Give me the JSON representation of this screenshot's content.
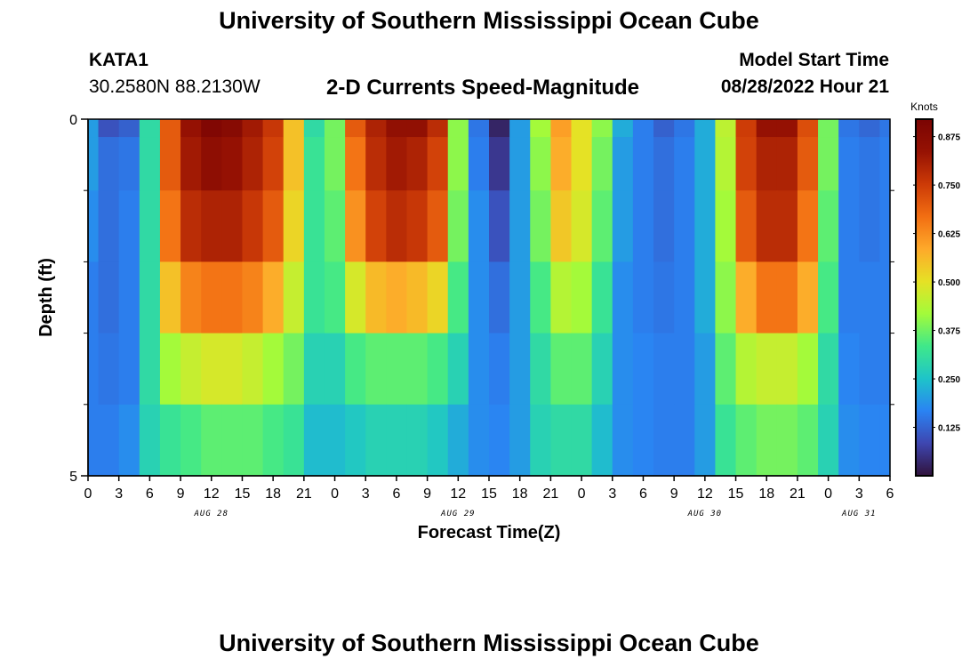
{
  "header": {
    "title": "University of Southern Mississippi Ocean Cube",
    "station": "KATA1",
    "coordinates": "30.2580N  88.2130W",
    "subtitle": "2-D Currents Speed-Magnitude",
    "model_start_label": "Model Start Time",
    "model_start_value": "08/28/2022 Hour 21"
  },
  "footer": {
    "title": "University of Southern Mississippi Ocean Cube"
  },
  "colors": {
    "colormap": [
      "#30123b",
      "#3e46b0",
      "#2a83f3",
      "#1ec4c9",
      "#3fe88a",
      "#a3fb3a",
      "#e6e125",
      "#fea92a",
      "#f26e12",
      "#cc3a07",
      "#961203",
      "#7a0403"
    ],
    "axis": "#000000"
  },
  "chart_data": {
    "type": "heatmap",
    "title": "2-D Currents Speed-Magnitude",
    "xlabel": "Forecast Time(Z)",
    "ylabel": "Depth (ft)",
    "colorbar_label": "Knots",
    "colorbar_ticks": [
      "0.875",
      "0.750",
      "0.625",
      "0.500",
      "0.375",
      "0.250",
      "0.125"
    ],
    "colorbar_range": [
      0,
      0.92
    ],
    "ylim": [
      0,
      5
    ],
    "y_tick_labels": [
      "0",
      "5"
    ],
    "x_tick_labels": [
      "0",
      "3",
      "6",
      "9",
      "12",
      "15",
      "18",
      "21",
      "0",
      "3",
      "6",
      "9",
      "12",
      "15",
      "18",
      "21",
      "0",
      "3",
      "6",
      "9",
      "12",
      "15",
      "18",
      "21",
      "0",
      "3",
      "6"
    ],
    "x_range_hours": [
      0,
      78
    ],
    "date_labels": [
      {
        "label": "AUG 28",
        "hour": 12
      },
      {
        "label": "AUG 29",
        "hour": 36
      },
      {
        "label": "AUG 30",
        "hour": 60
      },
      {
        "label": "AUG 31",
        "hour": 75
      }
    ],
    "depth_layers": [
      0,
      0.5,
      1.5,
      2.5,
      3.5,
      4.5
    ],
    "time_hours": [
      0,
      2,
      4,
      6,
      8,
      10,
      12,
      14,
      16,
      18,
      20,
      22,
      24,
      26,
      28,
      30,
      32,
      34,
      36,
      38,
      40,
      42,
      44,
      46,
      48,
      50,
      52,
      54,
      56,
      58,
      60,
      62,
      64,
      66,
      68,
      70,
      72,
      74,
      76,
      78
    ],
    "speed_knots": [
      [
        0.2,
        0.1,
        0.12,
        0.3,
        0.7,
        0.84,
        0.9,
        0.88,
        0.82,
        0.76,
        0.55,
        0.3,
        0.38,
        0.7,
        0.8,
        0.85,
        0.85,
        0.78,
        0.4,
        0.15,
        0.03,
        0.2,
        0.42,
        0.6,
        0.5,
        0.4,
        0.22,
        0.16,
        0.12,
        0.15,
        0.22,
        0.45,
        0.75,
        0.84,
        0.84,
        0.72,
        0.38,
        0.15,
        0.13,
        0.15
      ],
      [
        0.2,
        0.14,
        0.15,
        0.3,
        0.7,
        0.82,
        0.86,
        0.84,
        0.8,
        0.74,
        0.55,
        0.32,
        0.38,
        0.66,
        0.78,
        0.82,
        0.8,
        0.74,
        0.4,
        0.16,
        0.06,
        0.2,
        0.4,
        0.58,
        0.5,
        0.38,
        0.2,
        0.16,
        0.14,
        0.16,
        0.22,
        0.44,
        0.74,
        0.8,
        0.8,
        0.7,
        0.38,
        0.16,
        0.15,
        0.16
      ],
      [
        0.18,
        0.14,
        0.16,
        0.3,
        0.66,
        0.78,
        0.8,
        0.8,
        0.76,
        0.7,
        0.52,
        0.32,
        0.36,
        0.62,
        0.74,
        0.78,
        0.76,
        0.7,
        0.38,
        0.18,
        0.1,
        0.2,
        0.38,
        0.54,
        0.48,
        0.36,
        0.2,
        0.16,
        0.14,
        0.16,
        0.22,
        0.42,
        0.7,
        0.78,
        0.78,
        0.66,
        0.36,
        0.16,
        0.15,
        0.16
      ],
      [
        0.16,
        0.14,
        0.16,
        0.3,
        0.55,
        0.64,
        0.66,
        0.66,
        0.64,
        0.58,
        0.46,
        0.32,
        0.34,
        0.48,
        0.56,
        0.58,
        0.56,
        0.52,
        0.34,
        0.18,
        0.14,
        0.2,
        0.34,
        0.44,
        0.42,
        0.32,
        0.18,
        0.16,
        0.15,
        0.16,
        0.22,
        0.4,
        0.58,
        0.66,
        0.66,
        0.58,
        0.34,
        0.16,
        0.16,
        0.16
      ],
      [
        0.16,
        0.15,
        0.16,
        0.3,
        0.42,
        0.46,
        0.48,
        0.48,
        0.46,
        0.42,
        0.38,
        0.28,
        0.28,
        0.34,
        0.36,
        0.36,
        0.36,
        0.34,
        0.28,
        0.18,
        0.16,
        0.2,
        0.3,
        0.36,
        0.36,
        0.28,
        0.18,
        0.17,
        0.16,
        0.16,
        0.2,
        0.36,
        0.44,
        0.46,
        0.46,
        0.42,
        0.3,
        0.17,
        0.16,
        0.16
      ],
      [
        0.16,
        0.16,
        0.18,
        0.28,
        0.32,
        0.34,
        0.36,
        0.36,
        0.36,
        0.34,
        0.32,
        0.24,
        0.24,
        0.26,
        0.28,
        0.28,
        0.28,
        0.26,
        0.22,
        0.18,
        0.17,
        0.2,
        0.28,
        0.3,
        0.3,
        0.24,
        0.18,
        0.17,
        0.16,
        0.16,
        0.2,
        0.32,
        0.36,
        0.38,
        0.38,
        0.36,
        0.28,
        0.18,
        0.17,
        0.17
      ]
    ]
  }
}
